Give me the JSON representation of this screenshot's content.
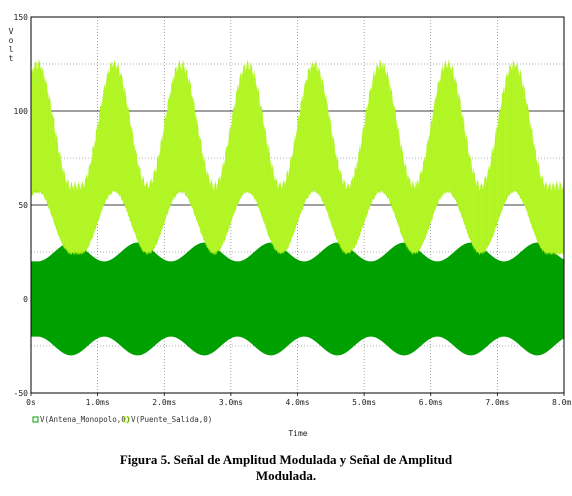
{
  "chart_data": {
    "type": "line",
    "xlabel": "Time",
    "ylabel": "Volt",
    "x_ticks": [
      "0s",
      "1.0ms",
      "2.0ms",
      "3.0ms",
      "4.0ms",
      "5.0ms",
      "6.0ms",
      "7.0ms",
      "8.0ms"
    ],
    "y_ticks": [
      "150",
      "100",
      "50",
      "0",
      "-50"
    ],
    "xlim": [
      0,
      8
    ],
    "ylim": [
      -50,
      150
    ],
    "grid": true,
    "legend_position": "bottom-left",
    "series": [
      {
        "name": "V(Antena_Monopolo,0)",
        "color": "#00a000",
        "offset": 0,
        "amp_min": 20,
        "amp_max": 30,
        "envelope_peaks_ms": [
          0.6,
          1.6,
          2.6,
          3.6,
          4.6,
          5.6,
          6.6,
          7.6
        ],
        "envelope_troughs_ms": [
          0.1,
          1.1,
          2.1,
          3.1,
          4.1,
          5.1,
          6.1,
          7.1,
          8.0
        ]
      },
      {
        "name": "V(Puente_Salida,0)",
        "color": "#a8f018",
        "upper_peak": 125,
        "upper_trough": 60,
        "lower_peak": 58,
        "lower_trough": 25,
        "envelope_peaks_ms": [
          0.1,
          1.25,
          2.25,
          3.25,
          4.25,
          5.25,
          6.25,
          7.25
        ],
        "envelope_troughs_ms": [
          0.8,
          1.8,
          2.8,
          3.8,
          4.8,
          5.8,
          6.8,
          7.8
        ]
      }
    ]
  },
  "caption": {
    "line1": "Figura 5. Señal de Amplitud Modulada y Señal de Amplitud",
    "line2": "Modulada."
  }
}
